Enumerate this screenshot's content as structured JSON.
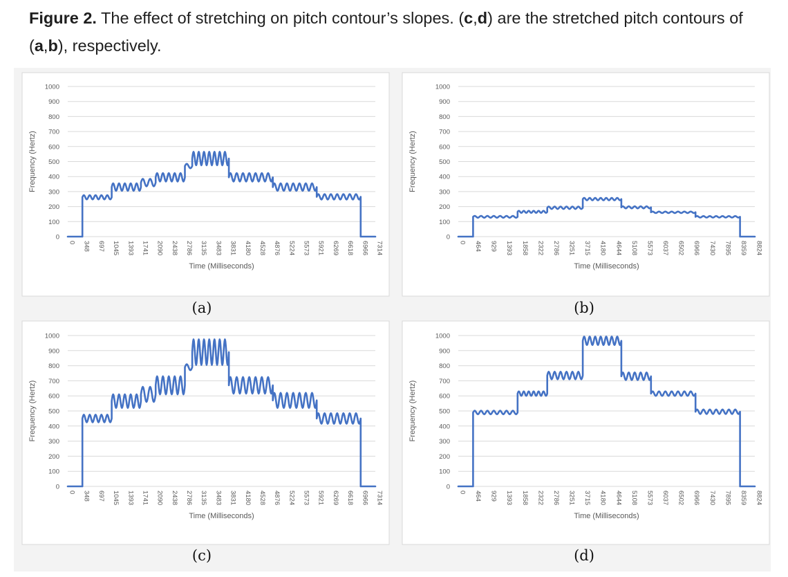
{
  "caption": {
    "fig_label": "Figure 2.",
    "text_1": " The effect of stretching on pitch contour’s slopes. (",
    "c": "c",
    "comma_1": ",",
    "d": "d",
    "text_2": ") are the stretched pitch contours of (",
    "a": "a",
    "comma_2": ",",
    "b": "b",
    "text_3": "), respectively."
  },
  "chart_data": [
    {
      "type": "line",
      "panel": "(a)",
      "xlabel": "Time (Milliseconds)",
      "ylabel": "Frequency (Hertz)",
      "ylim": [
        0,
        1000
      ],
      "yticks": [
        "0",
        "100",
        "200",
        "300",
        "400",
        "500",
        "600",
        "700",
        "800",
        "900",
        "1000"
      ],
      "xlim": [
        0,
        7314
      ],
      "xticks": [
        "0",
        "348",
        "697",
        "1045",
        "1393",
        "1741",
        "2090",
        "2438",
        "2786",
        "3135",
        "3483",
        "3831",
        "4180",
        "4528",
        "4876",
        "5224",
        "5573",
        "5921",
        "6269",
        "6618",
        "6966",
        "7314"
      ],
      "grid": true,
      "segments": [
        {
          "x0": 0,
          "x1": 348,
          "base": 0,
          "amp": 0,
          "cycles": 0
        },
        {
          "x0": 348,
          "x1": 1045,
          "base": 262,
          "amp": 14,
          "cycles": 5
        },
        {
          "x0": 1045,
          "x1": 1741,
          "base": 330,
          "amp": 25,
          "cycles": 5
        },
        {
          "x0": 1741,
          "x1": 2090,
          "base": 360,
          "amp": 25,
          "cycles": 2
        },
        {
          "x0": 2090,
          "x1": 2786,
          "base": 395,
          "amp": 28,
          "cycles": 5
        },
        {
          "x0": 2786,
          "x1": 2960,
          "base": 470,
          "amp": 15,
          "cycles": 1
        },
        {
          "x0": 2960,
          "x1": 3831,
          "base": 520,
          "amp": 45,
          "cycles": 7
        },
        {
          "x0": 3831,
          "x1": 4876,
          "base": 395,
          "amp": 28,
          "cycles": 7
        },
        {
          "x0": 4876,
          "x1": 5921,
          "base": 330,
          "amp": 25,
          "cycles": 7
        },
        {
          "x0": 5921,
          "x1": 6966,
          "base": 265,
          "amp": 18,
          "cycles": 7
        },
        {
          "x0": 6966,
          "x1": 7314,
          "base": 0,
          "amp": 0,
          "cycles": 0
        }
      ]
    },
    {
      "type": "line",
      "panel": "(b)",
      "xlabel": "Time (Milliseconds)",
      "ylabel": "Frequency (Hertz)",
      "ylim": [
        0,
        1000
      ],
      "yticks": [
        "0",
        "100",
        "200",
        "300",
        "400",
        "500",
        "600",
        "700",
        "800",
        "900",
        "1000"
      ],
      "xlim": [
        0,
        9288
      ],
      "xticks": [
        "0",
        "464",
        "929",
        "1393",
        "1858",
        "2322",
        "2786",
        "3251",
        "3715",
        "4180",
        "4644",
        "5108",
        "5573",
        "6037",
        "6502",
        "6966",
        "7430",
        "7895",
        "8359",
        "8824"
      ],
      "grid": true,
      "segments": [
        {
          "x0": 0,
          "x1": 464,
          "base": 0,
          "amp": 0,
          "cycles": 0
        },
        {
          "x0": 464,
          "x1": 1858,
          "base": 132,
          "amp": 6,
          "cycles": 7
        },
        {
          "x0": 1858,
          "x1": 2786,
          "base": 165,
          "amp": 7,
          "cycles": 6
        },
        {
          "x0": 2786,
          "x1": 3900,
          "base": 192,
          "amp": 8,
          "cycles": 6
        },
        {
          "x0": 3900,
          "x1": 5108,
          "base": 250,
          "amp": 8,
          "cycles": 7
        },
        {
          "x0": 5108,
          "x1": 6037,
          "base": 195,
          "amp": 7,
          "cycles": 5
        },
        {
          "x0": 6037,
          "x1": 7430,
          "base": 162,
          "amp": 5,
          "cycles": 7
        },
        {
          "x0": 7430,
          "x1": 8824,
          "base": 132,
          "amp": 5,
          "cycles": 7
        },
        {
          "x0": 8824,
          "x1": 9288,
          "base": 0,
          "amp": 0,
          "cycles": 0
        }
      ]
    },
    {
      "type": "line",
      "panel": "(c)",
      "xlabel": "Time (Milliseconds)",
      "ylabel": "Frequency (Hertz)",
      "ylim": [
        0,
        1000
      ],
      "yticks": [
        "0",
        "100",
        "200",
        "300",
        "400",
        "500",
        "600",
        "700",
        "800",
        "900",
        "1000"
      ],
      "xlim": [
        0,
        7314
      ],
      "xticks": [
        "0",
        "348",
        "697",
        "1045",
        "1393",
        "1741",
        "2090",
        "2438",
        "2786",
        "3135",
        "3483",
        "3831",
        "4180",
        "4528",
        "4876",
        "5224",
        "5573",
        "5921",
        "6269",
        "6618",
        "6966",
        "7314"
      ],
      "grid": true,
      "segments": [
        {
          "x0": 0,
          "x1": 348,
          "base": 0,
          "amp": 0,
          "cycles": 0
        },
        {
          "x0": 348,
          "x1": 1045,
          "base": 450,
          "amp": 25,
          "cycles": 5
        },
        {
          "x0": 1045,
          "x1": 1741,
          "base": 565,
          "amp": 45,
          "cycles": 5
        },
        {
          "x0": 1741,
          "x1": 2090,
          "base": 610,
          "amp": 50,
          "cycles": 2
        },
        {
          "x0": 2090,
          "x1": 2786,
          "base": 670,
          "amp": 60,
          "cycles": 5
        },
        {
          "x0": 2786,
          "x1": 2960,
          "base": 790,
          "amp": 20,
          "cycles": 1
        },
        {
          "x0": 2960,
          "x1": 3831,
          "base": 890,
          "amp": 85,
          "cycles": 7
        },
        {
          "x0": 3831,
          "x1": 4876,
          "base": 670,
          "amp": 55,
          "cycles": 7
        },
        {
          "x0": 4876,
          "x1": 5921,
          "base": 570,
          "amp": 50,
          "cycles": 7
        },
        {
          "x0": 5921,
          "x1": 6966,
          "base": 450,
          "amp": 35,
          "cycles": 7
        },
        {
          "x0": 6966,
          "x1": 7314,
          "base": 0,
          "amp": 0,
          "cycles": 0
        }
      ]
    },
    {
      "type": "line",
      "panel": "(d)",
      "xlabel": "Time (Milliseconds)",
      "ylabel": "Frequency (Hertz)",
      "ylim": [
        0,
        1000
      ],
      "yticks": [
        "0",
        "100",
        "200",
        "300",
        "400",
        "500",
        "600",
        "700",
        "800",
        "900",
        "1000"
      ],
      "xlim": [
        0,
        9288
      ],
      "xticks": [
        "0",
        "464",
        "929",
        "1393",
        "1858",
        "2322",
        "2786",
        "3251",
        "3715",
        "4180",
        "4644",
        "5108",
        "5573",
        "6037",
        "6502",
        "6966",
        "7430",
        "7895",
        "8359",
        "8824"
      ],
      "grid": true,
      "segments": [
        {
          "x0": 0,
          "x1": 464,
          "base": 0,
          "amp": 0,
          "cycles": 0
        },
        {
          "x0": 464,
          "x1": 1858,
          "base": 490,
          "amp": 12,
          "cycles": 7
        },
        {
          "x0": 1858,
          "x1": 2786,
          "base": 615,
          "amp": 15,
          "cycles": 6
        },
        {
          "x0": 2786,
          "x1": 3900,
          "base": 735,
          "amp": 25,
          "cycles": 6
        },
        {
          "x0": 3900,
          "x1": 5108,
          "base": 965,
          "amp": 28,
          "cycles": 7
        },
        {
          "x0": 5108,
          "x1": 6037,
          "base": 730,
          "amp": 25,
          "cycles": 5
        },
        {
          "x0": 6037,
          "x1": 7430,
          "base": 615,
          "amp": 15,
          "cycles": 7
        },
        {
          "x0": 7430,
          "x1": 8824,
          "base": 495,
          "amp": 15,
          "cycles": 7
        },
        {
          "x0": 8824,
          "x1": 9288,
          "base": 0,
          "amp": 0,
          "cycles": 0
        }
      ]
    }
  ],
  "colors": {
    "line": "#4472c4",
    "grid": "#d9d9d9",
    "panel_bg": "#ffffff",
    "figure_bg": "#f3f3f3",
    "panel_border": "#d9d9d9",
    "tick_text": "#595959"
  }
}
